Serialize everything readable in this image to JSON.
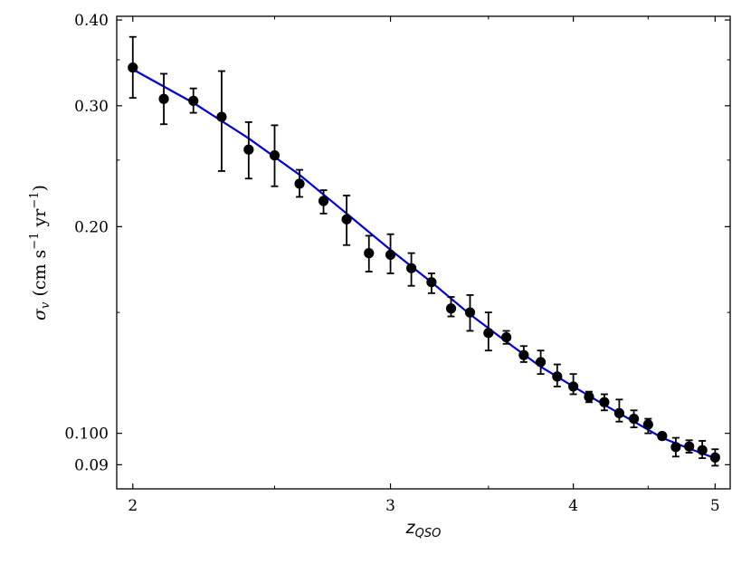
{
  "chart_data": {
    "type": "scatter",
    "xlabel": "z_QSO",
    "xlabel_main": "z",
    "xlabel_sub": "QSO",
    "ylabel": "σ_v (cm s⁻¹ yr⁻¹)",
    "ylabel_sym": "σ",
    "ylabel_sym_sub": "v",
    "ylabel_unit_open": " (cm s",
    "ylabel_exp1": "−1",
    "ylabel_unit_mid": " yr",
    "ylabel_exp2": "−1",
    "ylabel_unit_close": ")",
    "x_scale": "log",
    "y_scale": "log",
    "xlim": [
      1.95,
      5.12
    ],
    "ylim": [
      0.083,
      0.405
    ],
    "x_ticks": [
      2,
      3,
      4,
      5
    ],
    "x_tick_labels": [
      "2",
      "3",
      "4",
      "5"
    ],
    "y_ticks": [
      0.09,
      0.1,
      0.2,
      0.3,
      0.4
    ],
    "y_tick_labels": [
      "0.09",
      "0.100",
      "0.20",
      "0.30",
      "0.40"
    ],
    "grid": false,
    "legend": "none",
    "colors": {
      "points": "#000000",
      "fit_line": "#0000dd"
    },
    "series": [
      {
        "kind": "points_with_errorbars",
        "points": [
          {
            "x": 2.0,
            "y": 0.341,
            "lo": 0.308,
            "hi": 0.378
          },
          {
            "x": 2.1,
            "y": 0.307,
            "lo": 0.282,
            "hi": 0.334
          },
          {
            "x": 2.2,
            "y": 0.305,
            "lo": 0.293,
            "hi": 0.318
          },
          {
            "x": 2.3,
            "y": 0.289,
            "lo": 0.241,
            "hi": 0.337
          },
          {
            "x": 2.4,
            "y": 0.259,
            "lo": 0.235,
            "hi": 0.284
          },
          {
            "x": 2.5,
            "y": 0.254,
            "lo": 0.229,
            "hi": 0.281
          },
          {
            "x": 2.6,
            "y": 0.231,
            "lo": 0.221,
            "hi": 0.242
          },
          {
            "x": 2.7,
            "y": 0.218,
            "lo": 0.209,
            "hi": 0.226
          },
          {
            "x": 2.8,
            "y": 0.205,
            "lo": 0.188,
            "hi": 0.222
          },
          {
            "x": 2.9,
            "y": 0.183,
            "lo": 0.172,
            "hi": 0.194
          },
          {
            "x": 3.0,
            "y": 0.182,
            "lo": 0.171,
            "hi": 0.195
          },
          {
            "x": 3.1,
            "y": 0.174,
            "lo": 0.164,
            "hi": 0.183
          },
          {
            "x": 3.2,
            "y": 0.166,
            "lo": 0.16,
            "hi": 0.171
          },
          {
            "x": 3.3,
            "y": 0.152,
            "lo": 0.148,
            "hi": 0.158
          },
          {
            "x": 3.4,
            "y": 0.15,
            "lo": 0.141,
            "hi": 0.159
          },
          {
            "x": 3.5,
            "y": 0.14,
            "lo": 0.132,
            "hi": 0.15
          },
          {
            "x": 3.6,
            "y": 0.138,
            "lo": 0.135,
            "hi": 0.141
          },
          {
            "x": 3.7,
            "y": 0.13,
            "lo": 0.127,
            "hi": 0.134
          },
          {
            "x": 3.8,
            "y": 0.127,
            "lo": 0.122,
            "hi": 0.132
          },
          {
            "x": 3.9,
            "y": 0.121,
            "lo": 0.117,
            "hi": 0.126
          },
          {
            "x": 4.0,
            "y": 0.117,
            "lo": 0.114,
            "hi": 0.122
          },
          {
            "x": 4.1,
            "y": 0.113,
            "lo": 0.111,
            "hi": 0.115
          },
          {
            "x": 4.2,
            "y": 0.111,
            "lo": 0.108,
            "hi": 0.114
          },
          {
            "x": 4.3,
            "y": 0.107,
            "lo": 0.104,
            "hi": 0.112
          },
          {
            "x": 4.4,
            "y": 0.105,
            "lo": 0.102,
            "hi": 0.108
          },
          {
            "x": 4.5,
            "y": 0.103,
            "lo": 0.1,
            "hi": 0.105
          },
          {
            "x": 4.6,
            "y": 0.0991,
            "lo": 0.0981,
            "hi": 0.1001
          },
          {
            "x": 4.7,
            "y": 0.0955,
            "lo": 0.0925,
            "hi": 0.0985
          },
          {
            "x": 4.8,
            "y": 0.0957,
            "lo": 0.0937,
            "hi": 0.0977
          },
          {
            "x": 4.9,
            "y": 0.0945,
            "lo": 0.092,
            "hi": 0.0975
          },
          {
            "x": 5.0,
            "y": 0.0922,
            "lo": 0.0897,
            "hi": 0.0948
          }
        ]
      },
      {
        "kind": "fit_line",
        "x": [
          2.0,
          2.2,
          2.4,
          2.6,
          2.8,
          3.0,
          3.2,
          3.4,
          3.6,
          3.8,
          4.0,
          4.2,
          4.4,
          4.6,
          4.8,
          5.0
        ],
        "y": [
          0.339,
          0.303,
          0.269,
          0.238,
          0.209,
          0.185,
          0.166,
          0.149,
          0.136,
          0.125,
          0.117,
          0.11,
          0.104,
          0.0985,
          0.095,
          0.092
        ]
      }
    ]
  }
}
